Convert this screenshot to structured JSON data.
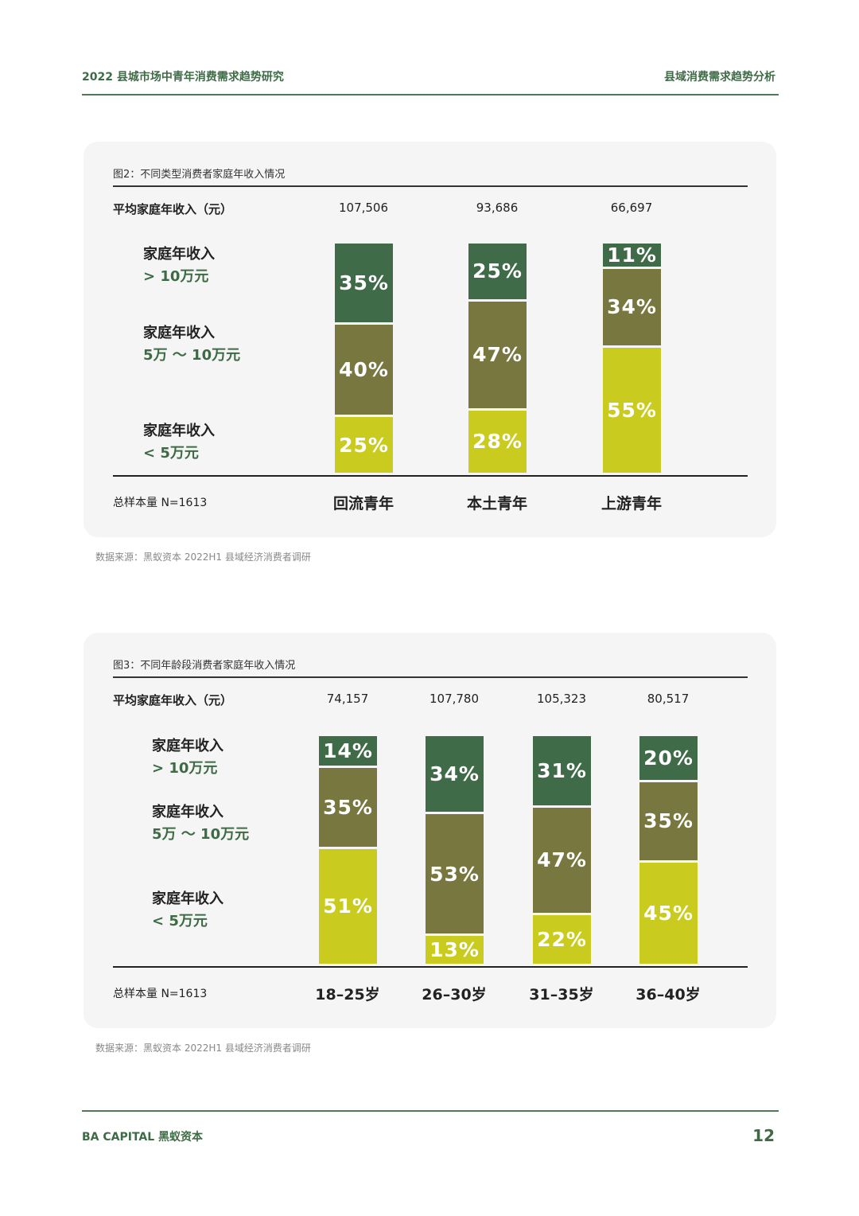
{
  "header": {
    "left": "2022 县城市场中青年消费需求趋势研究",
    "right": "县域消费需求趋势分析"
  },
  "colors": {
    "high": "#3f6b48",
    "mid": "#77773f",
    "low": "#c9cb1f",
    "accent": "#3e6b45"
  },
  "legend": {
    "high": {
      "line1": "家庭年收入",
      "line2": "> 10万元"
    },
    "mid": {
      "line1": "家庭年收入",
      "line2": "5万 ～ 10万元"
    },
    "low": {
      "line1": "家庭年收入",
      "line2": "< 5万元"
    }
  },
  "chart_data": [
    {
      "type": "bar",
      "stacked": true,
      "title": "图2：不同类型消费者家庭年收入情况",
      "avg_label": "平均家庭年收入（元）",
      "sample": "总样本量 N=1613",
      "categories": [
        "回流青年",
        "本土青年",
        "上游青年"
      ],
      "avg_income": [
        "107,506",
        "93,686",
        "66,697"
      ],
      "series": [
        {
          "name": "家庭年收入 < 5万元",
          "key": "low",
          "values": [
            25,
            28,
            55
          ],
          "labels": [
            "25%",
            "28%",
            "55%"
          ]
        },
        {
          "name": "家庭年收入 5万 ～ 10万元",
          "key": "mid",
          "values": [
            40,
            47,
            34
          ],
          "labels": [
            "40%",
            "47%",
            "34%"
          ]
        },
        {
          "name": "家庭年收入 > 10万元",
          "key": "high",
          "values": [
            35,
            25,
            11
          ],
          "labels": [
            "35%",
            "25%",
            "11%"
          ]
        }
      ],
      "source": "数据来源：黑蚁资本 2022H1 县域经济消费者调研"
    },
    {
      "type": "bar",
      "stacked": true,
      "title": "图3：不同年龄段消费者家庭年收入情况",
      "avg_label": "平均家庭年收入（元）",
      "sample": "总样本量 N=1613",
      "categories": [
        "18–25岁",
        "26–30岁",
        "31–35岁",
        "36–40岁"
      ],
      "avg_income": [
        "74,157",
        "107,780",
        "105,323",
        "80,517"
      ],
      "series": [
        {
          "name": "家庭年收入 < 5万元",
          "key": "low",
          "values": [
            51,
            13,
            22,
            45
          ],
          "labels": [
            "51%",
            "13%",
            "22%",
            "45%"
          ]
        },
        {
          "name": "家庭年收入 5万 ～ 10万元",
          "key": "mid",
          "values": [
            35,
            53,
            47,
            35
          ],
          "labels": [
            "35%",
            "53%",
            "47%",
            "35%"
          ]
        },
        {
          "name": "家庭年收入 > 10万元",
          "key": "high",
          "values": [
            14,
            34,
            31,
            20
          ],
          "labels": [
            "14%",
            "34%",
            "31%",
            "20%"
          ]
        }
      ],
      "source": "数据来源：黑蚁资本 2022H1 县域经济消费者调研"
    }
  ],
  "footer": {
    "brand": "BA CAPITAL 黑蚁资本",
    "page": "12"
  }
}
